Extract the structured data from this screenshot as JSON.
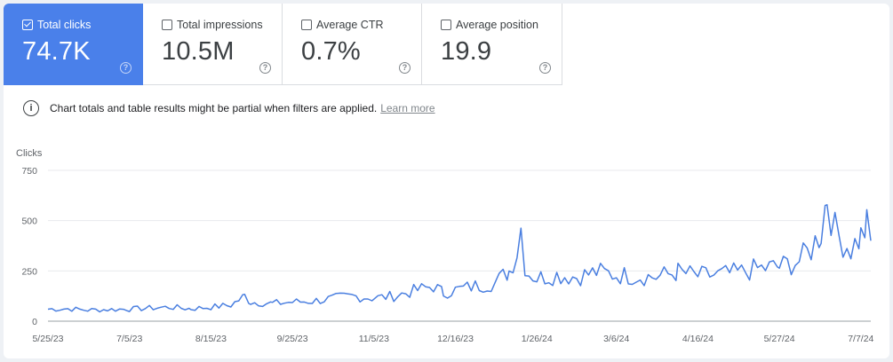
{
  "metrics": [
    {
      "label": "Total clicks",
      "value": "74.7K",
      "selected": true
    },
    {
      "label": "Total impressions",
      "value": "10.5M",
      "selected": false
    },
    {
      "label": "Average CTR",
      "value": "0.7%",
      "selected": false
    },
    {
      "label": "Average position",
      "value": "19.9",
      "selected": false
    }
  ],
  "help_glyph": "?",
  "notice": {
    "icon": "info-icon",
    "text": "Chart totals and table results might be partial when filters are applied.",
    "link": "Learn more"
  },
  "colors": {
    "accent": "#4a80ea",
    "line": "#4a7fe0"
  },
  "chart_data": {
    "type": "line",
    "ylabel": "Clicks",
    "ylim": [
      0,
      750
    ],
    "yticks": [
      "750",
      "500",
      "250",
      "0"
    ],
    "xticks": [
      "5/25/23",
      "7/5/23",
      "8/15/23",
      "9/25/23",
      "11/5/23",
      "12/16/23",
      "1/26/24",
      "3/6/24",
      "4/16/24",
      "5/27/24",
      "7/7/24"
    ],
    "grid": true,
    "series": [
      {
        "x": [
          "2023-05-25",
          "2023-06-04",
          "2023-06-14",
          "2023-06-24",
          "2023-07-05",
          "2023-07-15",
          "2023-07-25",
          "2023-08-05",
          "2023-08-15",
          "2023-08-25",
          "2023-09-01",
          "2023-09-04",
          "2023-09-15",
          "2023-09-25",
          "2023-10-05",
          "2023-10-15",
          "2023-10-25",
          "2023-11-05",
          "2023-11-15",
          "2023-11-25",
          "2023-12-05",
          "2023-12-10",
          "2023-12-16",
          "2023-12-26",
          "2024-01-05",
          "2024-01-12",
          "2024-01-16",
          "2024-01-18",
          "2024-01-20",
          "2024-01-22",
          "2024-01-26",
          "2024-02-05",
          "2024-02-15",
          "2024-02-25",
          "2024-03-06",
          "2024-03-16",
          "2024-03-26",
          "2024-04-06",
          "2024-04-16",
          "2024-04-26",
          "2024-05-06",
          "2024-05-16",
          "2024-05-27",
          "2024-06-06",
          "2024-06-12",
          "2024-06-17",
          "2024-06-20",
          "2024-06-24",
          "2024-06-28",
          "2024-07-02",
          "2024-07-07",
          "2024-07-10",
          "2024-07-12"
        ],
        "y": [
          60,
          62,
          55,
          58,
          60,
          65,
          70,
          62,
          70,
          80,
          125,
          95,
          88,
          95,
          100,
          112,
          125,
          115,
          125,
          150,
          175,
          140,
          155,
          175,
          190,
          250,
          350,
          465,
          280,
          240,
          215,
          230,
          220,
          245,
          230,
          225,
          220,
          245,
          225,
          230,
          240,
          260,
          270,
          300,
          360,
          445,
          630,
          450,
          400,
          360,
          420,
          470,
          400
        ]
      }
    ]
  }
}
